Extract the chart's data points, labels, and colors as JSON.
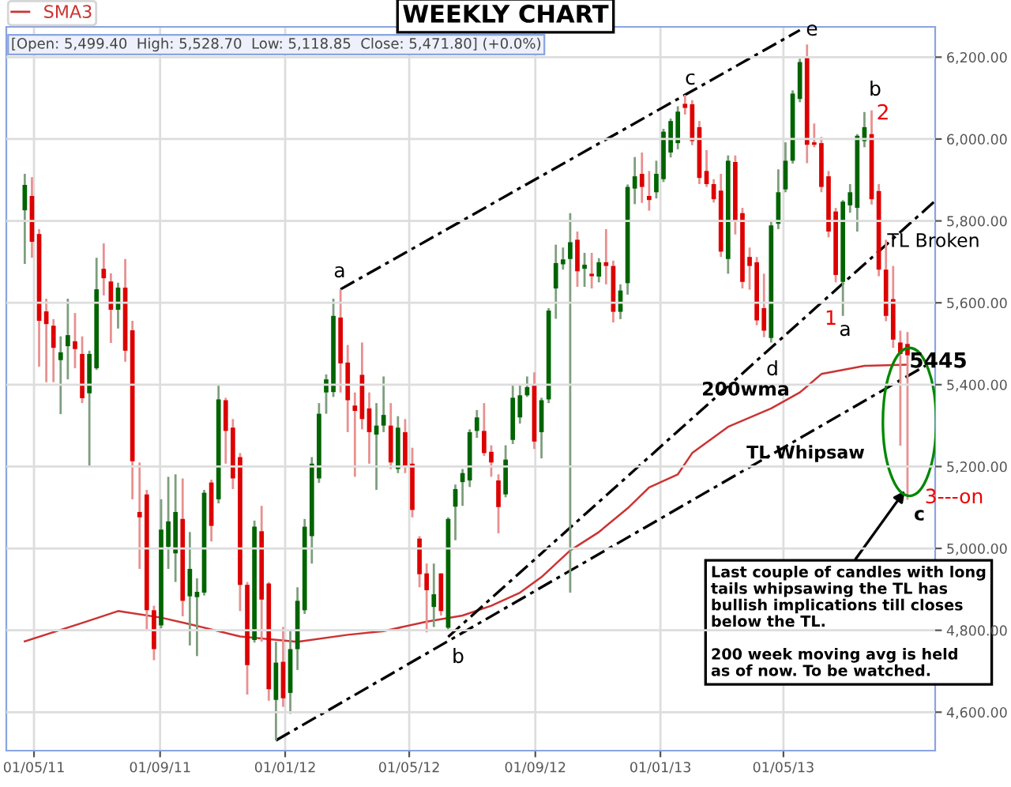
{
  "chart_data": {
    "type": "candlestick",
    "title": "WEEKLY CHART",
    "x": [
      "2011-04-22",
      "2011-04-29",
      "2011-05-06",
      "2011-05-13",
      "2011-05-20",
      "2011-05-27",
      "2011-06-03",
      "2011-06-10",
      "2011-06-17",
      "2011-06-24",
      "2011-07-01",
      "2011-07-08",
      "2011-07-15",
      "2011-07-22",
      "2011-07-29",
      "2011-08-05",
      "2011-08-12",
      "2011-08-19",
      "2011-08-26",
      "2011-09-02",
      "2011-09-09",
      "2011-09-16",
      "2011-09-23",
      "2011-09-30",
      "2011-10-07",
      "2011-10-14",
      "2011-10-21",
      "2011-10-28",
      "2011-11-04",
      "2011-11-11",
      "2011-11-18",
      "2011-11-25",
      "2011-12-02",
      "2011-12-09",
      "2011-12-16",
      "2011-12-23",
      "2011-12-30",
      "2012-01-06",
      "2012-01-13",
      "2012-01-20",
      "2012-01-27",
      "2012-02-03",
      "2012-02-10",
      "2012-02-17",
      "2012-02-24",
      "2012-03-02",
      "2012-03-09",
      "2012-03-16",
      "2012-03-23",
      "2012-03-30",
      "2012-04-06",
      "2012-04-13",
      "2012-04-20",
      "2012-04-27",
      "2012-05-04",
      "2012-05-11",
      "2012-05-18",
      "2012-05-25",
      "2012-06-01",
      "2012-06-08",
      "2012-06-15",
      "2012-06-22",
      "2012-06-29",
      "2012-07-06",
      "2012-07-13",
      "2012-07-20",
      "2012-07-27",
      "2012-08-03",
      "2012-08-10",
      "2012-08-17",
      "2012-08-24",
      "2012-08-31",
      "2012-09-07",
      "2012-09-14",
      "2012-09-21",
      "2012-09-28",
      "2012-10-05",
      "2012-10-12",
      "2012-10-19",
      "2012-10-26",
      "2012-11-02",
      "2012-11-09",
      "2012-11-16",
      "2012-11-23",
      "2012-11-30",
      "2012-12-07",
      "2012-12-14",
      "2012-12-21",
      "2012-12-28",
      "2013-01-04",
      "2013-01-11",
      "2013-01-18",
      "2013-01-25",
      "2013-02-01",
      "2013-02-08",
      "2013-02-15",
      "2013-02-22",
      "2013-03-01",
      "2013-03-08",
      "2013-03-15",
      "2013-03-22",
      "2013-03-29",
      "2013-04-05",
      "2013-04-12",
      "2013-04-19",
      "2013-04-26",
      "2013-05-03",
      "2013-05-10",
      "2013-05-17",
      "2013-05-24",
      "2013-05-31",
      "2013-06-07",
      "2013-06-14",
      "2013-06-21",
      "2013-06-28",
      "2013-07-05",
      "2013-07-12",
      "2013-07-19",
      "2013-07-26",
      "2013-08-02",
      "2013-08-09",
      "2013-08-16",
      "2013-08-23",
      "2013-08-30"
    ],
    "ohlc": [
      [
        5826,
        5915,
        5695,
        5888
      ],
      [
        5861,
        5907,
        5710,
        5749
      ],
      [
        5768,
        5780,
        5444,
        5556
      ],
      [
        5579,
        5610,
        5406,
        5548
      ],
      [
        5544,
        5560,
        5406,
        5490
      ],
      [
        5460,
        5518,
        5328,
        5479
      ],
      [
        5494,
        5610,
        5413,
        5521
      ],
      [
        5506,
        5575,
        5440,
        5487
      ],
      [
        5475,
        5518,
        5355,
        5367
      ],
      [
        5379,
        5483,
        5201,
        5475
      ],
      [
        5440,
        5710,
        5436,
        5633
      ],
      [
        5683,
        5745,
        5618,
        5660
      ],
      [
        5652,
        5672,
        5502,
        5583
      ],
      [
        5583,
        5649,
        5537,
        5637
      ],
      [
        5637,
        5707,
        5456,
        5483
      ],
      [
        5533,
        5556,
        5120,
        5213
      ],
      [
        5089,
        5210,
        4950,
        5076
      ],
      [
        5132,
        5143,
        4802,
        4849
      ],
      [
        4849,
        4860,
        4727,
        4754
      ],
      [
        4812,
        5120,
        4805,
        5046
      ],
      [
        5004,
        5175,
        4950,
        5066
      ],
      [
        4988,
        5181,
        4918,
        5089
      ],
      [
        5072,
        5171,
        4834,
        4872
      ],
      [
        4883,
        5040,
        4763,
        4950
      ],
      [
        4881,
        4927,
        4737,
        4894
      ],
      [
        4892,
        5143,
        4885,
        5136
      ],
      [
        5161,
        5168,
        5017,
        5055
      ],
      [
        5120,
        5400,
        5110,
        5364
      ],
      [
        5362,
        5368,
        5207,
        5287
      ],
      [
        5295,
        5316,
        5145,
        5171
      ],
      [
        5223,
        5233,
        4847,
        4911
      ],
      [
        4911,
        4918,
        4643,
        4715
      ],
      [
        4776,
        5068,
        4770,
        5053
      ],
      [
        5042,
        5104,
        4772,
        4875
      ],
      [
        4914,
        4918,
        4628,
        4656
      ],
      [
        4630,
        4772,
        4531,
        4721
      ],
      [
        4723,
        4808,
        4613,
        4634
      ],
      [
        4647,
        4798,
        4596,
        4754
      ],
      [
        4754,
        4905,
        4703,
        4872
      ],
      [
        4849,
        5072,
        4840,
        5053
      ],
      [
        5030,
        5223,
        4963,
        5207
      ],
      [
        5171,
        5355,
        5160,
        5329
      ],
      [
        5381,
        5425,
        5329,
        5413
      ],
      [
        5382,
        5610,
        5370,
        5568
      ],
      [
        5564,
        5633,
        5381,
        5452
      ],
      [
        5454,
        5497,
        5284,
        5362
      ],
      [
        5349,
        5381,
        5175,
        5336
      ],
      [
        5424,
        5503,
        5291,
        5316
      ],
      [
        5342,
        5381,
        5207,
        5284
      ],
      [
        5278,
        5355,
        5143,
        5300
      ],
      [
        5300,
        5420,
        5284,
        5326
      ],
      [
        5300,
        5355,
        5194,
        5210
      ],
      [
        5194,
        5323,
        5184,
        5295
      ],
      [
        5284,
        5316,
        5184,
        5201
      ],
      [
        5207,
        5246,
        5076,
        5094
      ],
      [
        5024,
        5030,
        4905,
        4937
      ],
      [
        4939,
        4963,
        4795,
        4898
      ],
      [
        4857,
        4963,
        4808,
        4888
      ],
      [
        4939,
        4939,
        4836,
        4847
      ],
      [
        4806,
        5076,
        4800,
        5072
      ],
      [
        5102,
        5156,
        5020,
        5145
      ],
      [
        5162,
        5194,
        5104,
        5184
      ],
      [
        5166,
        5291,
        5150,
        5284
      ],
      [
        5287,
        5338,
        5270,
        5320
      ],
      [
        5287,
        5355,
        5226,
        5233
      ],
      [
        5236,
        5252,
        5175,
        5210
      ],
      [
        5166,
        5181,
        5037,
        5101
      ],
      [
        5132,
        5252,
        5125,
        5217
      ],
      [
        5265,
        5400,
        5255,
        5368
      ],
      [
        5320,
        5400,
        5305,
        5374
      ],
      [
        5374,
        5420,
        5370,
        5394
      ],
      [
        5400,
        5430,
        5243,
        5261
      ],
      [
        5284,
        5368,
        5220,
        5362
      ],
      [
        5364,
        5587,
        5355,
        5581
      ],
      [
        5635,
        5742,
        5561,
        5697
      ],
      [
        5694,
        5735,
        5681,
        5706
      ],
      [
        5707,
        5819,
        4892,
        5748
      ],
      [
        5754,
        5774,
        5639,
        5677
      ],
      [
        5683,
        5722,
        5639,
        5693
      ],
      [
        5671,
        5722,
        5635,
        5665
      ],
      [
        5664,
        5709,
        5650,
        5699
      ],
      [
        5699,
        5780,
        5645,
        5690
      ],
      [
        5690,
        5703,
        5552,
        5578
      ],
      [
        5578,
        5645,
        5560,
        5630
      ],
      [
        5648,
        5889,
        5620,
        5883
      ],
      [
        5879,
        5956,
        5841,
        5909
      ],
      [
        5915,
        5967,
        5844,
        5883
      ],
      [
        5861,
        5922,
        5825,
        5851
      ],
      [
        5870,
        5947,
        5855,
        5915
      ],
      [
        5902,
        6025,
        5895,
        6018
      ],
      [
        5967,
        6050,
        5955,
        6044
      ],
      [
        5990,
        6080,
        5975,
        6067
      ],
      [
        6086,
        6108,
        6060,
        6076
      ],
      [
        6085,
        6095,
        5985,
        5995
      ],
      [
        6029,
        6044,
        5890,
        5905
      ],
      [
        5922,
        5973,
        5883,
        5890
      ],
      [
        5890,
        5902,
        5845,
        5853
      ],
      [
        5874,
        5915,
        5712,
        5725
      ],
      [
        5707,
        5960,
        5671,
        5947
      ],
      [
        5944,
        5960,
        5767,
        5800
      ],
      [
        5819,
        5832,
        5635,
        5651
      ],
      [
        5712,
        5735,
        5632,
        5690
      ],
      [
        5699,
        5712,
        5545,
        5557
      ],
      [
        5587,
        5671,
        5516,
        5532
      ],
      [
        5514,
        5800,
        5503,
        5789
      ],
      [
        5793,
        5926,
        5780,
        5870
      ],
      [
        5877,
        5992,
        5870,
        5947
      ],
      [
        5947,
        6119,
        5940,
        6111
      ],
      [
        6098,
        6196,
        6090,
        6188
      ],
      [
        6201,
        6231,
        5941,
        5986
      ],
      [
        5992,
        6038,
        5980,
        5986
      ],
      [
        5990,
        6005,
        5870,
        5883
      ],
      [
        5909,
        5922,
        5760,
        5774
      ],
      [
        5823,
        5832,
        5650,
        5668
      ],
      [
        5651,
        5851,
        5568,
        5847
      ],
      [
        5838,
        5890,
        5820,
        5870
      ],
      [
        5832,
        6012,
        5774,
        6008
      ],
      [
        5995,
        6066,
        5980,
        6029
      ],
      [
        6012,
        6070,
        5840,
        5853
      ],
      [
        5873,
        5890,
        5665,
        5681
      ],
      [
        5681,
        5754,
        5555,
        5568
      ],
      [
        5609,
        5690,
        5490,
        5510
      ],
      [
        5503,
        5532,
        5251,
        5475
      ],
      [
        5499.4,
        5528.7,
        5118.85,
        5471.8
      ]
    ],
    "series": [
      {
        "name": "SMA3",
        "type": "line",
        "color": "#cc3333",
        "x": [
          "2011-04-22",
          "2011-06-17",
          "2011-07-22",
          "2011-09-02",
          "2011-09-30",
          "2011-11-18",
          "2012-01-13",
          "2012-03-02",
          "2012-04-06",
          "2012-05-18",
          "2012-06-22",
          "2012-07-20",
          "2012-08-17",
          "2012-09-07",
          "2012-10-05",
          "2012-11-02",
          "2012-11-30",
          "2012-12-21",
          "2013-01-18",
          "2013-02-01",
          "2013-03-08",
          "2013-04-19",
          "2013-05-17",
          "2013-06-07",
          "2013-07-19",
          "2013-08-30"
        ],
        "values": [
          4773,
          4818,
          4847,
          4831,
          4815,
          4785,
          4772,
          4789,
          4798,
          4821,
          4836,
          4860,
          4892,
          4930,
          4995,
          5040,
          5098,
          5149,
          5181,
          5233,
          5297,
          5342,
          5381,
          5426,
          5446,
          5449
        ]
      },
      {
        "type": "line",
        "color": "#000000",
        "line_style": "dashed",
        "x": [
          "2012-02-24",
          "2013-05-17"
        ],
        "values": [
          5633,
          6266
        ]
      },
      {
        "type": "line",
        "color": "#000000",
        "line_style": "dashed",
        "x": [
          "2011-12-23",
          "2013-09-26"
        ],
        "values": [
          4531,
          5460
        ]
      },
      {
        "type": "line",
        "color": "#000000",
        "line_style": "dashed",
        "x": [
          "2012-06-08",
          "2013-09-26"
        ],
        "values": [
          4784,
          5849
        ]
      }
    ],
    "xlim": [
      "2011-04-04",
      "2013-09-26"
    ],
    "xticks": [
      {
        "value": "2011-05-01",
        "label": "01/05/11"
      },
      {
        "value": "2011-09-01",
        "label": "01/09/11"
      },
      {
        "value": "2012-01-01",
        "label": "01/01/12"
      },
      {
        "value": "2012-05-01",
        "label": "01/05/12"
      },
      {
        "value": "2012-09-01",
        "label": "01/09/12"
      },
      {
        "value": "2013-01-01",
        "label": "01/01/13"
      },
      {
        "value": "2013-05-01",
        "label": "01/05/13"
      }
    ],
    "ylim": [
      4506,
      6274
    ],
    "yticks": [
      {
        "value": 4600,
        "label": "4,600.00"
      },
      {
        "value": 4800,
        "label": "4,800.00"
      },
      {
        "value": 5000,
        "label": "5,000.00"
      },
      {
        "value": 5200,
        "label": "5,200.00"
      },
      {
        "value": 5400,
        "label": "5,400.00"
      },
      {
        "value": 5600,
        "label": "5,600.00"
      },
      {
        "value": 5800,
        "label": "5,800.00"
      },
      {
        "value": 6000,
        "label": "6,000.00"
      },
      {
        "value": 6200,
        "label": "6,200.00"
      }
    ],
    "grid": true,
    "legend": "top left",
    "annotations": [
      "[Open: 5,499.40  High: 5,528.70  Low: 5,118.85  Close: 5,471.80] (+0.0%)",
      "a",
      "c",
      "e",
      "b",
      "2",
      "1",
      "a",
      "d",
      "b",
      "TL Broken",
      "5445",
      "200wma",
      "TL Whipsaw",
      "c",
      "3---on",
      {
        "text": "Last couple of candles with long\ntails whipsawing the TL has\nbullish implications till closes\nbelow the TL.",
        "x": "2013-08-30",
        "y": 5150
      },
      "200 week moving avg is held\nas of now. To be watched."
    ]
  }
}
